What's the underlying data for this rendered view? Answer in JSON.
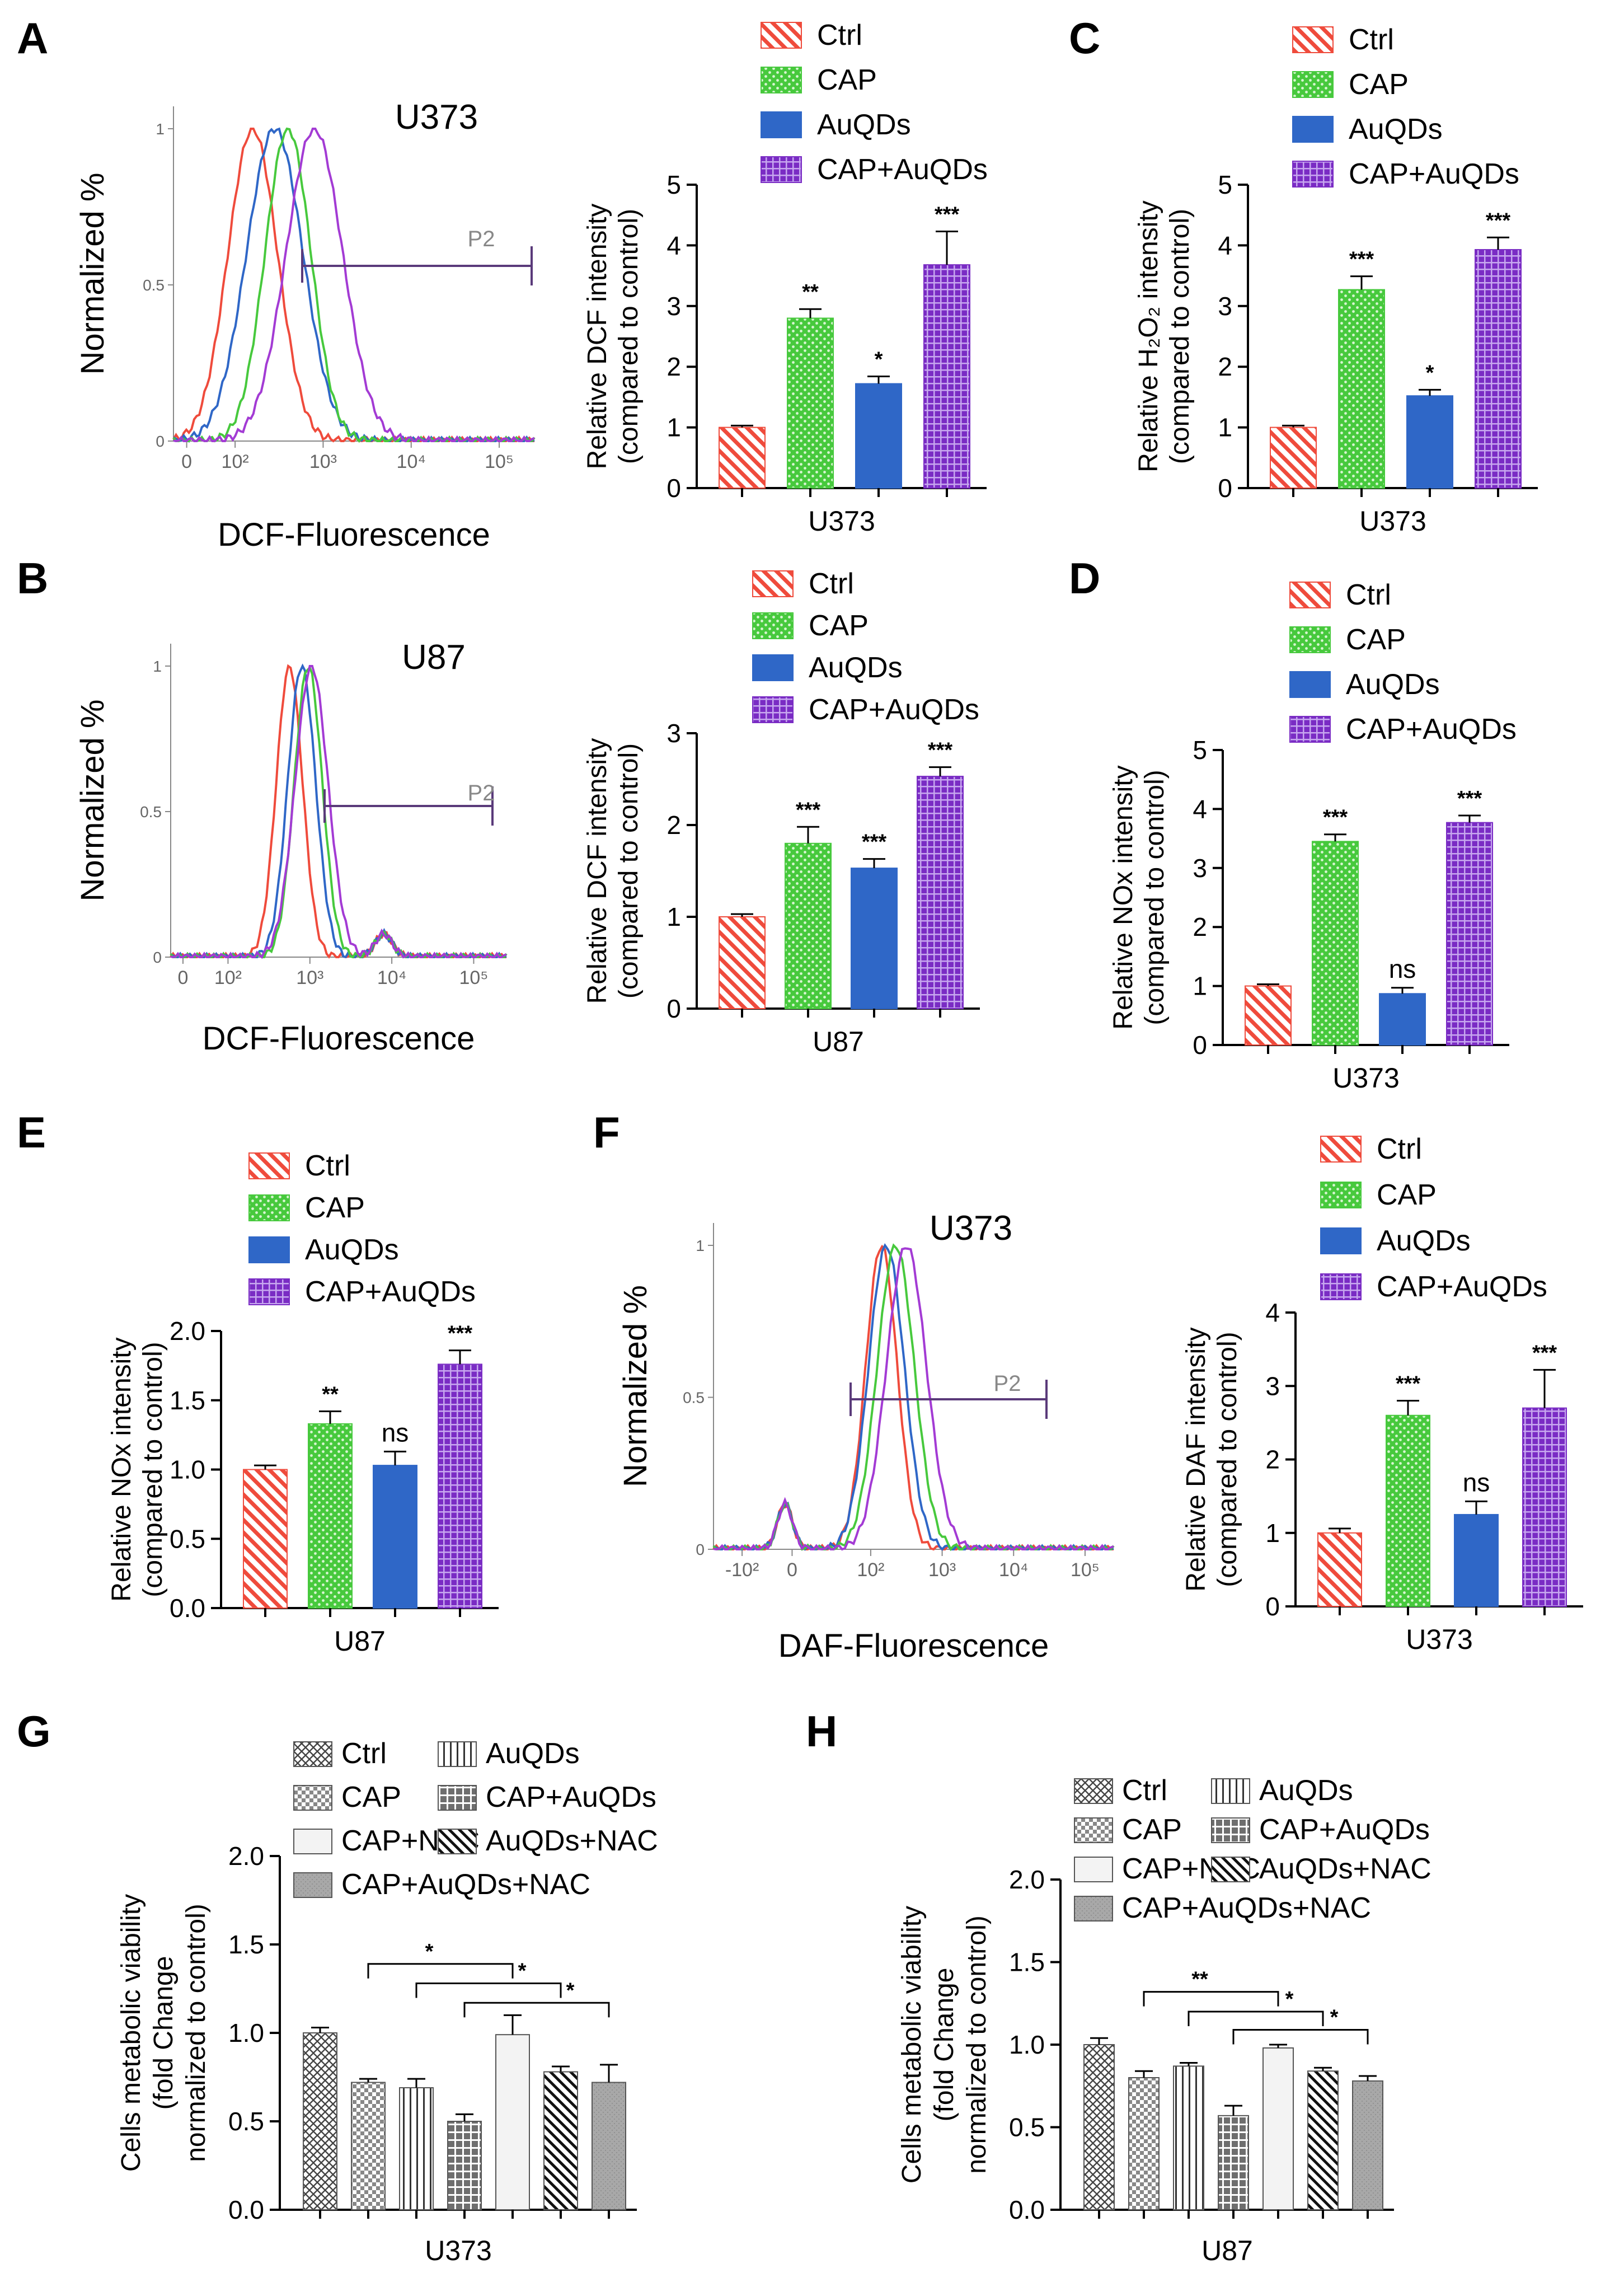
{
  "panels": {
    "A": {
      "label": "A"
    },
    "B": {
      "label": "B"
    },
    "C": {
      "label": "C"
    },
    "D": {
      "label": "D"
    },
    "E": {
      "label": "E"
    },
    "F": {
      "label": "F"
    },
    "G": {
      "label": "G"
    },
    "H": {
      "label": "H"
    }
  },
  "colors": {
    "ctrl": "#ef4b3c",
    "cap": "#47c93d",
    "auqds": "#2f67c7",
    "capauqds": "#7a2cc4",
    "grey": "#9a9a9a",
    "light": "#f2f2f2",
    "hist_purple": "#a33bd4",
    "gate": "#5a3a7a"
  },
  "chart_data": [
    {
      "id": "A_flow",
      "type": "line",
      "title": "U373",
      "xlabel": "DCF-Fluorescence",
      "ylabel": "Normalized %",
      "xtick_labels": [
        "0",
        "10²",
        "10³",
        "10⁴",
        "10⁵"
      ],
      "ytick_labels": [
        "0",
        "0.5",
        "1"
      ],
      "gate_label": "P2",
      "series": [
        {
          "name": "Ctrl",
          "peak_log": 2.2,
          "width": 0.28
        },
        {
          "name": "AuQDs",
          "peak_log": 2.45,
          "width": 0.32
        },
        {
          "name": "CAP",
          "peak_log": 2.6,
          "width": 0.26
        },
        {
          "name": "CAP+AuQDs",
          "peak_log": 2.9,
          "width": 0.32
        }
      ]
    },
    {
      "id": "A_bar",
      "type": "bar",
      "categories": [
        "Ctrl",
        "CAP",
        "AuQDs",
        "CAP+AuQDs"
      ],
      "values": [
        1.0,
        2.8,
        1.72,
        3.68
      ],
      "errors": [
        0.03,
        0.15,
        0.12,
        0.55
      ],
      "significance": [
        "",
        "**",
        "*",
        "***"
      ],
      "ylabel": "Relative DCF intensity\n(compared to control)",
      "xlabel": "U373",
      "ylim": [
        0,
        5
      ],
      "yticks": [
        "0",
        "1",
        "2",
        "3",
        "4",
        "5"
      ],
      "legend": [
        "Ctrl",
        "CAP",
        "AuQDs",
        "CAP+AuQDs"
      ]
    },
    {
      "id": "C_bar",
      "type": "bar",
      "categories": [
        "Ctrl",
        "CAP",
        "AuQDs",
        "CAP+AuQDs"
      ],
      "values": [
        1.0,
        3.27,
        1.52,
        3.93
      ],
      "errors": [
        0.03,
        0.22,
        0.1,
        0.2
      ],
      "significance": [
        "",
        "***",
        "*",
        "***"
      ],
      "ylabel": "Relative H₂O₂ intensity\n(compared to control)",
      "xlabel": "U373",
      "ylim": [
        0,
        5
      ],
      "yticks": [
        "0",
        "1",
        "2",
        "3",
        "4",
        "5"
      ],
      "legend": [
        "Ctrl",
        "CAP",
        "AuQDs",
        "CAP+AuQDs"
      ]
    },
    {
      "id": "B_flow",
      "type": "line",
      "title": "U87",
      "xlabel": "DCF-Fluorescence",
      "ylabel": "Normalized %",
      "xtick_labels": [
        "0",
        "10²",
        "10³",
        "10⁴",
        "10⁵"
      ],
      "ytick_labels": [
        "0",
        "0.5",
        "1"
      ],
      "gate_label": "P2",
      "series": [
        {
          "name": "Ctrl",
          "peak_log": 2.75,
          "width": 0.16
        },
        {
          "name": "AuQDs",
          "peak_log": 2.9,
          "width": 0.17
        },
        {
          "name": "CAP",
          "peak_log": 2.98,
          "width": 0.17
        },
        {
          "name": "CAP+AuQDs",
          "peak_log": 3.02,
          "width": 0.2
        }
      ]
    },
    {
      "id": "B_bar",
      "type": "bar",
      "categories": [
        "Ctrl",
        "CAP",
        "AuQDs",
        "CAP+AuQDs"
      ],
      "values": [
        1.0,
        1.8,
        1.53,
        2.53
      ],
      "errors": [
        0.03,
        0.18,
        0.1,
        0.1
      ],
      "significance": [
        "",
        "***",
        "***",
        "***"
      ],
      "ylabel": "Relative DCF intensity\n(compared to control)",
      "xlabel": "U87",
      "ylim": [
        0,
        3
      ],
      "yticks": [
        "0",
        "1",
        "2",
        "3"
      ],
      "legend": [
        "Ctrl",
        "CAP",
        "AuQDs",
        "CAP+AuQDs"
      ]
    },
    {
      "id": "D_bar",
      "type": "bar",
      "categories": [
        "Ctrl",
        "CAP",
        "AuQDs",
        "CAP+AuQDs"
      ],
      "values": [
        1.0,
        3.45,
        0.87,
        3.77
      ],
      "errors": [
        0.03,
        0.12,
        0.1,
        0.12
      ],
      "significance": [
        "",
        "***",
        "ns",
        "***"
      ],
      "ylabel": "Relative NOx intensity\n(compared to control)",
      "xlabel": "U373",
      "ylim": [
        0,
        5
      ],
      "yticks": [
        "0",
        "1",
        "2",
        "3",
        "4",
        "5"
      ],
      "legend": [
        "Ctrl",
        "CAP",
        "AuQDs",
        "CAP+AuQDs"
      ]
    },
    {
      "id": "E_bar",
      "type": "bar",
      "categories": [
        "Ctrl",
        "CAP",
        "AuQDs",
        "CAP+AuQDs"
      ],
      "values": [
        1.0,
        1.33,
        1.03,
        1.76
      ],
      "errors": [
        0.03,
        0.09,
        0.1,
        0.1
      ],
      "significance": [
        "",
        "**",
        "ns",
        "***"
      ],
      "ylabel": "Relative NOx intensity\n(compared to control)",
      "xlabel": "U87",
      "ylim": [
        0,
        2
      ],
      "yticks": [
        "0.0",
        "0.5",
        "1.0",
        "1.5",
        "2.0"
      ],
      "legend": [
        "Ctrl",
        "CAP",
        "AuQDs",
        "CAP+AuQDs"
      ]
    },
    {
      "id": "F_flow",
      "type": "line",
      "title": "U373",
      "xlabel": "DAF-Fluorescence",
      "ylabel": "Normalized %",
      "xtick_labels": [
        "-10²",
        "0",
        "10²",
        "10³",
        "10⁴",
        "10⁵"
      ],
      "ytick_labels": [
        "0",
        "0.5",
        "1"
      ],
      "gate_label": "P2",
      "series": [
        {
          "name": "Ctrl",
          "peak_log": 2.15,
          "width": 0.22
        },
        {
          "name": "AuQDs",
          "peak_log": 2.22,
          "width": 0.25
        },
        {
          "name": "CAP",
          "peak_log": 2.35,
          "width": 0.26
        },
        {
          "name": "CAP+AuQDs",
          "peak_log": 2.5,
          "width": 0.28
        }
      ]
    },
    {
      "id": "F_bar",
      "type": "bar",
      "categories": [
        "Ctrl",
        "CAP",
        "AuQDs",
        "CAP+AuQDs"
      ],
      "values": [
        1.0,
        2.6,
        1.25,
        2.7
      ],
      "errors": [
        0.06,
        0.2,
        0.18,
        0.52
      ],
      "significance": [
        "",
        "***",
        "ns",
        "***"
      ],
      "ylabel": "Relative DAF intensity\n(compared to control)",
      "xlabel": "U373",
      "ylim": [
        0,
        4
      ],
      "yticks": [
        "0",
        "1",
        "2",
        "3",
        "4"
      ],
      "legend": [
        "Ctrl",
        "CAP",
        "AuQDs",
        "CAP+AuQDs"
      ]
    },
    {
      "id": "G_bar",
      "type": "bar",
      "categories": [
        "Ctrl",
        "CAP",
        "AuQDs",
        "CAP+AuQDs",
        "CAP+NAC",
        "AuQDs+NAC",
        "CAP+AuQDs+NAC"
      ],
      "values": [
        1.0,
        0.72,
        0.69,
        0.5,
        0.99,
        0.78,
        0.72
      ],
      "errors": [
        0.03,
        0.02,
        0.05,
        0.04,
        0.11,
        0.03,
        0.1
      ],
      "ylabel": "Cells metabolic viability\n(fold Change\nnormalized to control)",
      "xlabel": "U373",
      "ylim": [
        0,
        2
      ],
      "yticks": [
        "0.0",
        "0.5",
        "1.0",
        "1.5",
        "2.0"
      ],
      "legend": [
        "Ctrl",
        "AuQDs",
        "CAP",
        "CAP+AuQDs",
        "CAP+NAC",
        "AuQDs+NAC",
        "CAP+AuQDs+NAC"
      ],
      "brackets": [
        {
          "from": 1,
          "to": 4,
          "label": "*"
        },
        {
          "from": 2,
          "to": 5,
          "label": "*"
        },
        {
          "from": 3,
          "to": 6,
          "label": "*"
        }
      ]
    },
    {
      "id": "H_bar",
      "type": "bar",
      "categories": [
        "Ctrl",
        "CAP",
        "AuQDs",
        "CAP+AuQDs",
        "CAP+NAC",
        "AuQDs+NAC",
        "CAP+AuQDs+NAC"
      ],
      "values": [
        1.0,
        0.8,
        0.87,
        0.57,
        0.98,
        0.84,
        0.78
      ],
      "errors": [
        0.04,
        0.04,
        0.02,
        0.06,
        0.02,
        0.02,
        0.03
      ],
      "ylabel": "Cells metabolic viability\n(fold Change\nnormalized to control)",
      "xlabel": "U87",
      "ylim": [
        0,
        2
      ],
      "yticks": [
        "0.0",
        "0.5",
        "1.0",
        "1.5",
        "2.0"
      ],
      "legend": [
        "Ctrl",
        "AuQDs",
        "CAP",
        "CAP+AuQDs",
        "CAP+NAC",
        "AuQDs+NAC",
        "CAP+AuQDs+NAC"
      ],
      "brackets": [
        {
          "from": 1,
          "to": 4,
          "label": "**"
        },
        {
          "from": 2,
          "to": 5,
          "label": "*"
        },
        {
          "from": 3,
          "to": 6,
          "label": "*"
        }
      ]
    }
  ]
}
